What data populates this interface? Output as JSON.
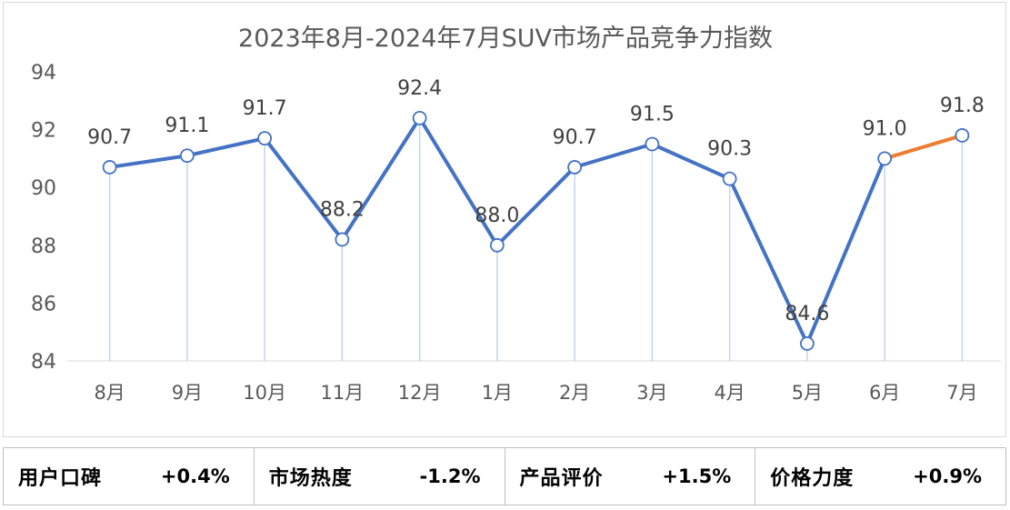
{
  "chart_data": {
    "type": "line",
    "title": "2023年8月-2024年7月SUV市场产品竞争力指数",
    "categories": [
      "8月",
      "9月",
      "10月",
      "11月",
      "12月",
      "1月",
      "2月",
      "3月",
      "4月",
      "5月",
      "6月",
      "7月"
    ],
    "values": [
      90.7,
      91.1,
      91.7,
      88.2,
      92.4,
      88.0,
      90.7,
      91.5,
      90.3,
      84.6,
      91.0,
      91.8
    ],
    "data_labels": [
      "90.7",
      "91.1",
      "91.7",
      "88.2",
      "92.4",
      "88.0",
      "90.7",
      "91.5",
      "90.3",
      "84.6",
      "91.0",
      "91.8"
    ],
    "y_ticks": [
      "84",
      "86",
      "88",
      "90",
      "92",
      "94"
    ],
    "ylim": [
      84,
      94
    ],
    "grid": false,
    "line_color": "#4472c4",
    "highlight_segment_color": "#ed7d31",
    "drop_line_color": "#c5d5ea"
  },
  "metrics": [
    {
      "label": "用户口碑",
      "value": "+0.4%"
    },
    {
      "label": "市场热度",
      "value": "-1.2%"
    },
    {
      "label": "产品评价",
      "value": "+1.5%"
    },
    {
      "label": "价格力度",
      "value": "+0.9%"
    }
  ]
}
